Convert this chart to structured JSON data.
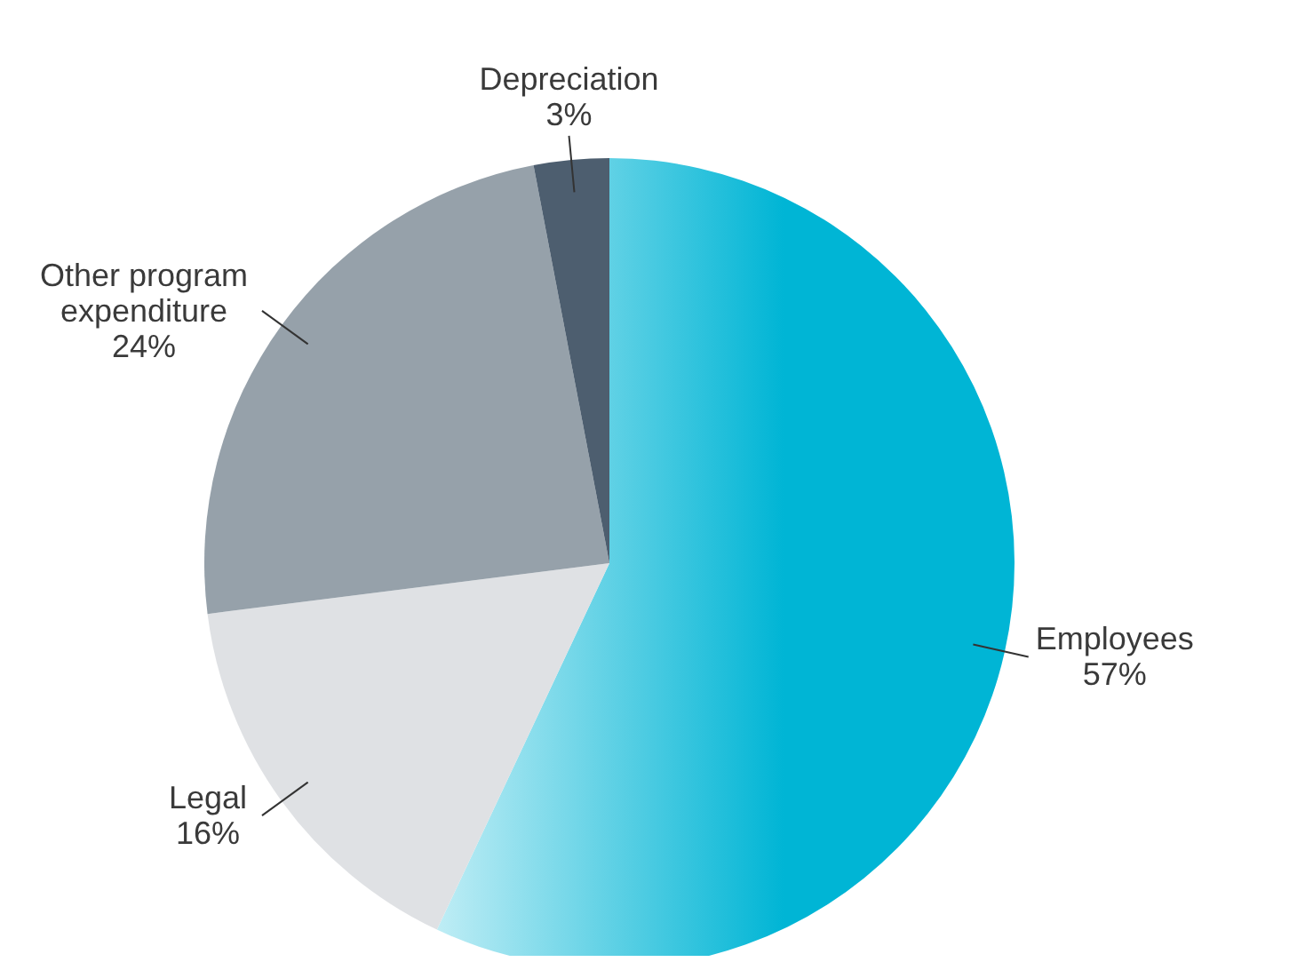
{
  "chart_data": {
    "type": "pie",
    "categories": [
      "Employees",
      "Legal",
      "Other program expenditure",
      "Depreciation"
    ],
    "values": [
      57,
      16,
      24,
      3
    ],
    "colors": [
      "#00b5d5",
      "#dfe1e4",
      "#96a1aa",
      "#4d5e6f"
    ],
    "value_labels": [
      "57%",
      "16%",
      "24%",
      "3%"
    ]
  }
}
